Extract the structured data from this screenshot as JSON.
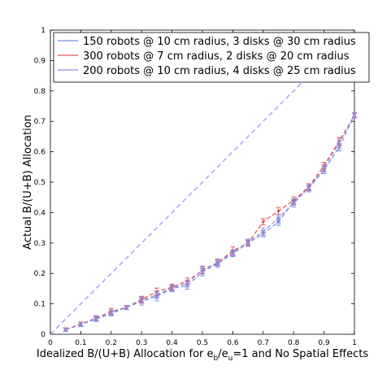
{
  "chart_data": {
    "type": "scatter",
    "title": "",
    "xlabel": "Idealized B/(U+B) Allocation for e",
    "xlabel_sub1": "b",
    "xlabel_mid": "/e",
    "xlabel_sub2": "u",
    "xlabel_tail": "=1 and No Spatial Effects",
    "ylabel": "Actual B/(U+B) Allocation",
    "xlim": [
      0,
      1
    ],
    "ylim": [
      0,
      1
    ],
    "xticks": [
      "0",
      "0.1",
      "0.2",
      "0.3",
      "0.4",
      "0.5",
      "0.6",
      "0.7",
      "0.8",
      "0.9",
      "1"
    ],
    "yticks": [
      "0",
      "0.1",
      "0.2",
      "0.3",
      "0.4",
      "0.5",
      "0.6",
      "0.7",
      "0.8",
      "0.9",
      "1"
    ],
    "grid": false,
    "legend_position": "top-right",
    "x": [
      0.05,
      0.1,
      0.15,
      0.2,
      0.25,
      0.3,
      0.35,
      0.4,
      0.45,
      0.5,
      0.55,
      0.6,
      0.65,
      0.7,
      0.75,
      0.8,
      0.85,
      0.9,
      0.95,
      1.0
    ],
    "series": [
      {
        "name": "150 robots @ 10 cm radius, 3 disks @ 30 cm radius",
        "color": "#6f8fe0",
        "values": [
          0.015,
          0.032,
          0.05,
          0.068,
          0.088,
          0.108,
          0.125,
          0.15,
          0.16,
          0.205,
          0.232,
          0.265,
          0.3,
          0.33,
          0.37,
          0.435,
          0.48,
          0.54,
          0.615,
          0.72
        ],
        "errors": [
          0.006,
          0.007,
          0.008,
          0.008,
          0.007,
          0.012,
          0.015,
          0.01,
          0.012,
          0.013,
          0.012,
          0.01,
          0.01,
          0.01,
          0.012,
          0.01,
          0.012,
          0.012,
          0.012,
          0.008
        ]
      },
      {
        "name": "300 robots @ 7 cm radius, 2 disks @ 20 cm radius",
        "color": "#e05050",
        "values": [
          0.016,
          0.034,
          0.053,
          0.075,
          0.088,
          0.115,
          0.14,
          0.155,
          0.175,
          0.21,
          0.235,
          0.275,
          0.3,
          0.37,
          0.405,
          0.44,
          0.485,
          0.555,
          0.635,
          0.72
        ],
        "errors": [
          0.005,
          0.006,
          0.008,
          0.01,
          0.006,
          0.01,
          0.012,
          0.01,
          0.01,
          0.012,
          0.01,
          0.012,
          0.008,
          0.01,
          0.012,
          0.012,
          0.01,
          0.01,
          0.012,
          0.008
        ]
      },
      {
        "name": "200 robots @ 10 cm radius, 4 disks @ 25 cm radius",
        "color": "#9a86d6",
        "values": [
          0.015,
          0.033,
          0.052,
          0.072,
          0.088,
          0.112,
          0.13,
          0.152,
          0.168,
          0.212,
          0.236,
          0.268,
          0.303,
          0.338,
          0.382,
          0.43,
          0.482,
          0.545,
          0.63,
          0.72
        ],
        "errors": [
          0.005,
          0.006,
          0.007,
          0.008,
          0.007,
          0.01,
          0.012,
          0.01,
          0.01,
          0.012,
          0.012,
          0.01,
          0.01,
          0.012,
          0.012,
          0.012,
          0.01,
          0.012,
          0.012,
          0.008
        ]
      }
    ],
    "reference_line": {
      "x": [
        0,
        1
      ],
      "y": [
        0,
        1
      ],
      "style": "dashed",
      "color": "#8f8ff0"
    }
  }
}
